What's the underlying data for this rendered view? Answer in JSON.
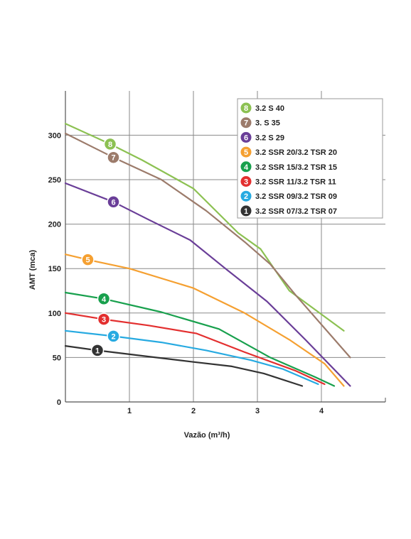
{
  "chart_data": {
    "type": "line",
    "title": "",
    "xlabel": "Vazão (m³/h)",
    "ylabel": "AMT (mca)",
    "xlim": [
      0,
      5
    ],
    "ylim": [
      0,
      350
    ],
    "x_ticks": [
      1,
      2,
      3,
      4
    ],
    "y_ticks": [
      0,
      50,
      100,
      150,
      200,
      250,
      300
    ],
    "x_tick_labels": [
      "1",
      "2",
      "3",
      "4"
    ],
    "y_tick_labels": [
      "0",
      "50",
      "100",
      "150",
      "200",
      "250",
      "300"
    ],
    "grid": true,
    "legend_position": "top-right",
    "series": [
      {
        "id": "8",
        "name": "3.2 S 40",
        "color": "#8cc152",
        "x": [
          0,
          0.7,
          1.2,
          2.0,
          2.7,
          3.05,
          3.5,
          4.35
        ],
        "y": [
          313,
          290,
          272,
          240,
          190,
          172,
          125,
          80
        ],
        "badge_x": 0.7
      },
      {
        "id": "7",
        "name": "3. S 35",
        "color": "#9c7b6b",
        "x": [
          0,
          0.75,
          1.5,
          2.2,
          2.8,
          3.2,
          3.6,
          4.45
        ],
        "y": [
          302,
          275,
          250,
          215,
          180,
          155,
          120,
          50
        ],
        "badge_x": 0.75
      },
      {
        "id": "6",
        "name": "3.2 S 29",
        "color": "#6a3e98",
        "x": [
          0,
          0.75,
          1.3,
          1.95,
          2.5,
          3.15,
          3.75,
          4.45
        ],
        "y": [
          246,
          225,
          205,
          182,
          150,
          113,
          70,
          18
        ],
        "badge_x": 0.75
      },
      {
        "id": "5",
        "name": "3.2 SSR 20/3.2 TSR 20",
        "color": "#f5a031",
        "x": [
          0,
          0.35,
          1.0,
          2.0,
          2.8,
          3.5,
          4.05,
          4.35
        ],
        "y": [
          166,
          160,
          150,
          128,
          100,
          70,
          43,
          18
        ],
        "badge_x": 0.35
      },
      {
        "id": "4",
        "name": "3.2 SSR 15/3.2 TSR 15",
        "color": "#18a04d",
        "x": [
          0,
          0.6,
          1.5,
          2.4,
          3.2,
          3.9,
          4.2
        ],
        "y": [
          123,
          116,
          101,
          82,
          50,
          28,
          18
        ],
        "badge_x": 0.6
      },
      {
        "id": "3",
        "name": "3.2 SSR 11/3.2 TSR 11",
        "color": "#e32f2f",
        "x": [
          0,
          0.6,
          1.3,
          2.05,
          2.8,
          3.6,
          4.05
        ],
        "y": [
          100,
          93,
          86,
          77,
          56,
          35,
          20
        ],
        "badge_x": 0.6
      },
      {
        "id": "2",
        "name": "3.2 SSR 09/3.2 TSR 09",
        "color": "#27aae1",
        "x": [
          0,
          0.75,
          1.5,
          2.2,
          2.9,
          3.4,
          3.95
        ],
        "y": [
          80,
          74,
          67,
          58,
          47,
          37,
          20
        ],
        "badge_x": 0.75
      },
      {
        "id": "1",
        "name": "3.2 SSR 07/3.2 TSR 07",
        "color": "#333333",
        "x": [
          0,
          0.5,
          1.3,
          2.0,
          2.6,
          3.1,
          3.7
        ],
        "y": [
          63,
          58,
          51,
          45,
          40,
          32,
          18
        ],
        "badge_x": 0.5
      }
    ]
  }
}
